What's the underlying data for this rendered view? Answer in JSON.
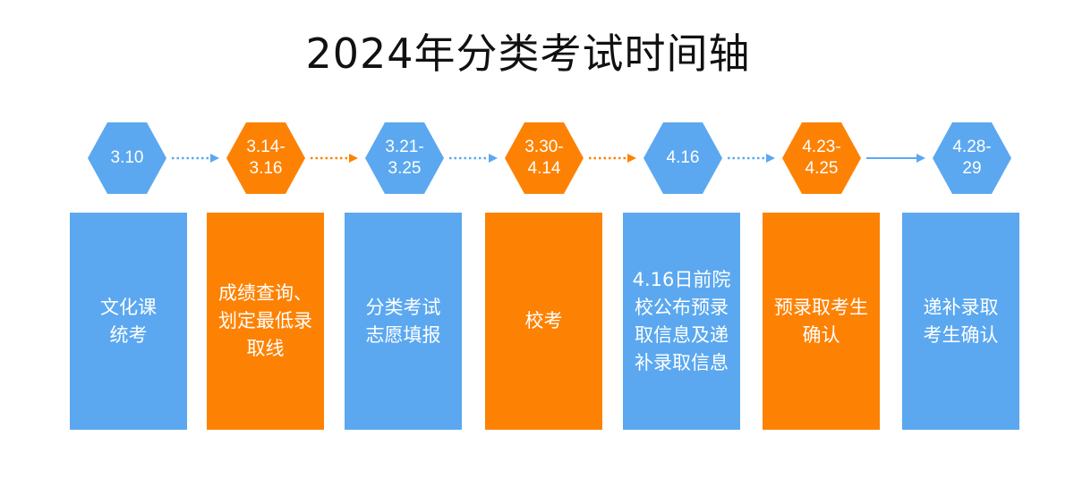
{
  "title": "2024年分类考试时间轴",
  "colors": {
    "blue": "#5ba8f0",
    "orange": "#fd8204"
  },
  "steps": [
    {
      "date": "3.10",
      "desc": "文化课\n统考",
      "color": "blue"
    },
    {
      "date": "3.14-\n3.16",
      "desc": "成绩查询、\n划定最低录\n取线",
      "color": "orange"
    },
    {
      "date": "3.21-\n3.25",
      "desc": "分类考试\n志愿填报",
      "color": "blue"
    },
    {
      "date": "3.30-\n4.14",
      "desc": "校考",
      "color": "orange"
    },
    {
      "date": "4.16",
      "desc": "4.16日前院\n校公布预录\n取信息及递\n补录取信息",
      "color": "blue"
    },
    {
      "date": "4.23-\n4.25",
      "desc": "预录取考生\n确认",
      "color": "orange"
    },
    {
      "date": "4.28-\n29",
      "desc": "递补录取\n考生确认",
      "color": "blue"
    }
  ],
  "connectors": [
    {
      "style": "dotted",
      "color": "blue"
    },
    {
      "style": "dotted",
      "color": "orange"
    },
    {
      "style": "dotted",
      "color": "blue"
    },
    {
      "style": "dotted",
      "color": "orange"
    },
    {
      "style": "dotted",
      "color": "blue"
    },
    {
      "style": "solid",
      "color": "blue"
    }
  ]
}
